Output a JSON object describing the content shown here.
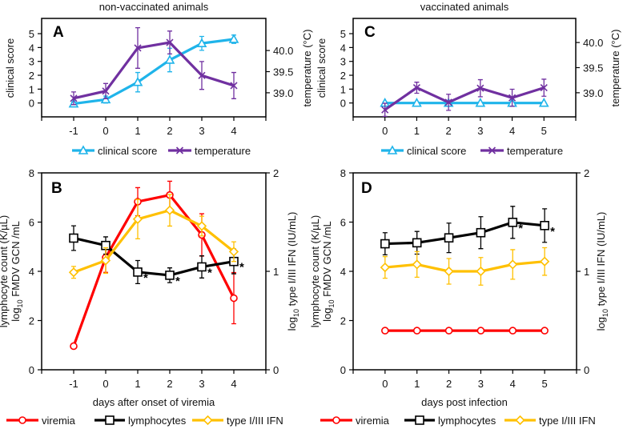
{
  "titles": {
    "left": "non-vaccinated animals",
    "right": "vaccinated animals"
  },
  "chart_data": [
    {
      "panel": "A",
      "type": "line",
      "x": [
        -1,
        0,
        1,
        2,
        3,
        4
      ],
      "xlim": [
        -2,
        5
      ],
      "xlabel": "",
      "ylabel": "clinical score",
      "ylim": [
        -1,
        6.1
      ],
      "yticks": [
        "0",
        "1",
        "2",
        "3",
        "4",
        "5"
      ],
      "y2label": "temperature (°C)",
      "y2lim": [
        38.43,
        40.76
      ],
      "y2ticks": [
        "39.0",
        "39.5",
        "40.0"
      ],
      "legend": "bottom",
      "grid": false,
      "series": [
        {
          "name": "clinical score",
          "axis": "left",
          "color": "#1fb4ea",
          "marker": "triangle",
          "values": [
            -0.05,
            0.25,
            1.5,
            3.1,
            4.3,
            4.6
          ],
          "errors": [
            0.1,
            0.25,
            0.7,
            0.85,
            0.5,
            0.3
          ]
        },
        {
          "name": "temperature",
          "axis": "right",
          "color": "#7030a0",
          "marker": "x",
          "values": [
            38.87,
            39.04,
            40.06,
            40.19,
            39.41,
            39.17
          ],
          "errors": [
            0.15,
            0.18,
            0.48,
            0.27,
            0.33,
            0.31
          ]
        }
      ]
    },
    {
      "panel": "C",
      "type": "line",
      "x": [
        0,
        1,
        2,
        3,
        4,
        5
      ],
      "xlim": [
        -1,
        6
      ],
      "xlabel": "",
      "ylabel": "clinical score",
      "ylim": [
        -1,
        6.1
      ],
      "yticks": [
        "0",
        "1",
        "2",
        "3",
        "4",
        "5"
      ],
      "y2label": "temperature (°C)",
      "y2lim": [
        38.52,
        40.48
      ],
      "y2ticks": [
        "39.0",
        "39.5",
        "40.0"
      ],
      "legend": "bottom",
      "grid": false,
      "series": [
        {
          "name": "clinical score",
          "axis": "left",
          "color": "#1fb4ea",
          "marker": "triangle",
          "values": [
            0,
            0,
            0,
            0,
            0,
            0
          ],
          "errors": [
            0.08,
            0,
            0.08,
            0,
            0,
            0
          ]
        },
        {
          "name": "temperature",
          "axis": "right",
          "color": "#7030a0",
          "marker": "x",
          "values": [
            38.66,
            39.1,
            38.81,
            39.09,
            38.9,
            39.1
          ],
          "errors": [
            0.13,
            0.11,
            0.16,
            0.17,
            0.17,
            0.17
          ]
        }
      ]
    },
    {
      "panel": "B",
      "type": "line",
      "x": [
        -1,
        0,
        1,
        2,
        3,
        4
      ],
      "xlim": [
        -2,
        5
      ],
      "xlabel": "days after onset of viremia",
      "ylabel": "lymphocyte count (K/µL)",
      "ylabel2": {
        "pre": "log",
        "sub": "10",
        "post": " FMDV GCN /mL"
      },
      "ylim": [
        0,
        8
      ],
      "yticks": [
        "0",
        "2",
        "4",
        "6",
        "8"
      ],
      "y2label": {
        "pre": "log",
        "sub": "10",
        "post": " type I/III IFN (IU/mL)"
      },
      "y2lim": [
        0,
        2
      ],
      "y2ticks": [
        "0",
        "1",
        "2"
      ],
      "legend": "bottom",
      "grid": false,
      "asterisk": "*",
      "series": [
        {
          "name": "viremia",
          "axis": "left",
          "color": "#ff0000",
          "marker": "circle",
          "values": [
            0.96,
            4.56,
            6.83,
            7.1,
            5.48,
            2.91
          ],
          "errors": [
            0,
            0.6,
            0.57,
            0.56,
            0.86,
            1.04
          ],
          "significant": []
        },
        {
          "name": "lymphocytes",
          "axis": "left",
          "color": "#000000",
          "marker": "square",
          "values": [
            5.35,
            5.05,
            3.97,
            3.84,
            4.18,
            4.4
          ],
          "errors": [
            0.5,
            0.35,
            0.47,
            0.3,
            0.45,
            0.5
          ],
          "significant": [
            1,
            2,
            3,
            4
          ]
        },
        {
          "name": "type I/III IFN",
          "axis": "right",
          "color": "#ffc000",
          "marker": "diamond",
          "values": [
            0.99,
            1.11,
            1.53,
            1.62,
            1.46,
            1.2
          ],
          "errors": [
            0.06,
            0.13,
            0.2,
            0.16,
            0.1,
            0.1
          ],
          "significant": []
        }
      ]
    },
    {
      "panel": "D",
      "type": "line",
      "x": [
        0,
        1,
        2,
        3,
        4,
        5
      ],
      "xlim": [
        -1,
        6
      ],
      "xlabel": "days post infection",
      "ylabel": "lymphocyte count (K/µL)",
      "ylabel2": {
        "pre": "log",
        "sub": "10",
        "post": " FMDV GCN /mL"
      },
      "ylim": [
        0,
        8
      ],
      "yticks": [
        "0",
        "2",
        "4",
        "6",
        "8"
      ],
      "y2label": {
        "pre": "log",
        "sub": "10",
        "post": " type I/III IFN (IU/mL)"
      },
      "y2lim": [
        0,
        2
      ],
      "y2ticks": [
        "0",
        "1",
        "2"
      ],
      "legend": "bottom",
      "grid": false,
      "asterisk": "*",
      "series": [
        {
          "name": "viremia",
          "axis": "left",
          "color": "#ff0000",
          "marker": "circle",
          "values": [
            1.59,
            1.59,
            1.59,
            1.59,
            1.59,
            1.59
          ],
          "errors": [
            0,
            0,
            0,
            0,
            0,
            0
          ],
          "significant": []
        },
        {
          "name": "lymphocytes",
          "axis": "left",
          "color": "#000000",
          "marker": "square",
          "values": [
            5.12,
            5.16,
            5.36,
            5.57,
            5.99,
            5.86
          ],
          "errors": [
            0.45,
            0.46,
            0.6,
            0.65,
            0.65,
            0.68
          ],
          "significant": [
            4,
            5
          ]
        },
        {
          "name": "type I/III IFN",
          "axis": "right",
          "color": "#ffc000",
          "marker": "diamond",
          "values": [
            1.04,
            1.07,
            1.0,
            1.0,
            1.07,
            1.1
          ],
          "errors": [
            0.11,
            0.13,
            0.13,
            0.14,
            0.15,
            0.14
          ],
          "significant": []
        }
      ]
    }
  ]
}
